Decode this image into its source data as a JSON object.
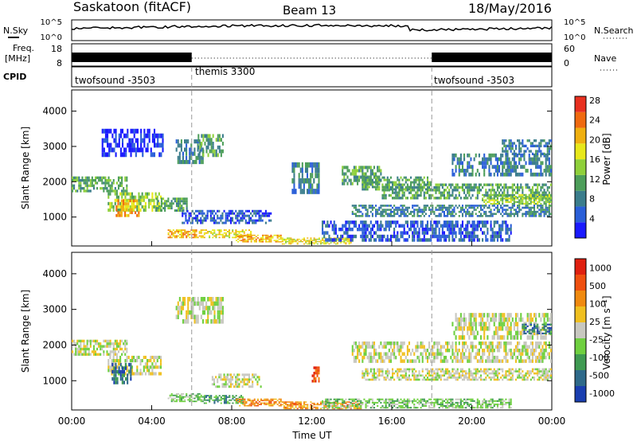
{
  "header": {
    "site_title": "Saskatoon (fitACF)",
    "beam": "Beam 13",
    "date": "18/May/2016"
  },
  "strip": {
    "nsky_label": "N.Sky",
    "nsky_ticks": [
      "10^5",
      "10^0"
    ],
    "nsearch_label": "N.Search",
    "nsearch_ticks": [
      "10^5",
      "10^0"
    ],
    "freq_label": "Freq.",
    "freq_unit": "[MHz]",
    "freq_ticks": [
      "18",
      "8"
    ],
    "nave_label": "Nave",
    "nave_ticks": [
      "60",
      "0"
    ],
    "cpid_label": "CPID",
    "cpid_segments": [
      {
        "name": "twofsound -3503",
        "start_h": 0,
        "end_h": 6
      },
      {
        "name": "themis 3300",
        "start_h": 6,
        "end_h": 18
      },
      {
        "name": "twofsound -3503",
        "start_h": 18,
        "end_h": 24
      }
    ]
  },
  "chart_data": [
    {
      "type": "heatmap",
      "panel": "power",
      "ylabel": "Slant Range [km]",
      "colorbar_label": "Power [dB]",
      "ylim": [
        180,
        4600
      ],
      "xlim_hours": [
        0,
        24
      ],
      "yticks": [
        "1000",
        "2000",
        "3000",
        "4000"
      ],
      "colorbar_ticks": [
        "4",
        "8",
        "12",
        "16",
        "20",
        "24",
        "28"
      ],
      "colorscale": [
        "#1a1aff",
        "#2a5fd8",
        "#3b7d8c",
        "#4d9e5a",
        "#8fd03a",
        "#e8e81a",
        "#f0b010",
        "#f06a10",
        "#e83020"
      ],
      "bands": [
        {
          "h0": 0,
          "h1": 2.8,
          "r0": 1700,
          "r1": 2150,
          "level": 3
        },
        {
          "h0": 1.8,
          "h1": 4.5,
          "r0": 1150,
          "r1": 1700,
          "level": 4
        },
        {
          "h0": 2.2,
          "h1": 3.4,
          "r0": 1000,
          "r1": 1500,
          "level": 6
        },
        {
          "h0": 4.2,
          "h1": 5.8,
          "r0": 1150,
          "r1": 1550,
          "level": 3
        },
        {
          "h0": 5.2,
          "h1": 6.6,
          "r0": 2500,
          "r1": 3200,
          "level": 2
        },
        {
          "h0": 6.3,
          "h1": 7.6,
          "r0": 2700,
          "r1": 3350,
          "level": 3
        },
        {
          "h0": 4.8,
          "h1": 6.6,
          "r0": 400,
          "r1": 650,
          "level": 6
        },
        {
          "h0": 6.6,
          "h1": 9.0,
          "r0": 400,
          "r1": 650,
          "level": 5
        },
        {
          "h0": 8.2,
          "h1": 10.5,
          "r0": 280,
          "r1": 500,
          "level": 6
        },
        {
          "h0": 10.5,
          "h1": 14.0,
          "r0": 220,
          "r1": 420,
          "level": 5
        },
        {
          "h0": 11.0,
          "h1": 12.4,
          "r0": 1650,
          "r1": 2550,
          "level": 2
        },
        {
          "h0": 13.5,
          "h1": 15.5,
          "r0": 1900,
          "r1": 2450,
          "level": 3
        },
        {
          "h0": 14.5,
          "h1": 18.0,
          "r0": 1750,
          "r1": 2150,
          "level": 3
        },
        {
          "h0": 15.5,
          "h1": 24.0,
          "r0": 1500,
          "r1": 1950,
          "level": 3
        },
        {
          "h0": 20.5,
          "h1": 24.0,
          "r0": 1350,
          "r1": 1650,
          "level": 4
        },
        {
          "h0": 14.0,
          "h1": 24.0,
          "r0": 1000,
          "r1": 1350,
          "level": 2
        },
        {
          "h0": 19.0,
          "h1": 24.0,
          "r0": 2150,
          "r1": 2800,
          "level": 2
        },
        {
          "h0": 21.5,
          "h1": 24.0,
          "r0": 2750,
          "r1": 3200,
          "level": 2
        },
        {
          "h0": 12.5,
          "h1": 22.0,
          "r0": 300,
          "r1": 900,
          "level": 1
        },
        {
          "h0": 5.5,
          "h1": 10.0,
          "r0": 800,
          "r1": 1200,
          "level": 1
        },
        {
          "h0": 1.5,
          "h1": 4.6,
          "r0": 2700,
          "r1": 3500,
          "level": 0
        }
      ]
    },
    {
      "type": "heatmap",
      "panel": "velocity",
      "ylabel": "Slant Range [km]",
      "xlabel": "Time UT",
      "colorbar_label": "Velocity [m s⁻¹]",
      "ylim": [
        180,
        4600
      ],
      "xlim_hours": [
        0,
        24
      ],
      "yticks": [
        "1000",
        "2000",
        "3000",
        "4000"
      ],
      "xticks": [
        "00:00",
        "04:00",
        "08:00",
        "12:00",
        "16:00",
        "20:00",
        "00:00"
      ],
      "colorbar_ticks": [
        "1000",
        "500",
        "100",
        "25",
        "-25",
        "-100",
        "-500",
        "-1000"
      ],
      "colorscale": [
        "#1a3fb0",
        "#2f6a8a",
        "#3f9a52",
        "#6fd040",
        "#c8c8c0",
        "#f0c020",
        "#f08a10",
        "#f05010",
        "#e02010"
      ],
      "bands": [
        {
          "h0": 0,
          "h1": 2.8,
          "r0": 1700,
          "r1": 2150,
          "level": 4
        },
        {
          "h0": 1.8,
          "h1": 4.5,
          "r0": 1150,
          "r1": 1700,
          "level": 4
        },
        {
          "h0": 2.0,
          "h1": 3.0,
          "r0": 900,
          "r1": 1500,
          "level": 1
        },
        {
          "h0": 5.2,
          "h1": 7.6,
          "r0": 2600,
          "r1": 3350,
          "level": 4
        },
        {
          "h0": 4.8,
          "h1": 6.6,
          "r0": 400,
          "r1": 650,
          "level": 3
        },
        {
          "h0": 6.6,
          "h1": 8.6,
          "r0": 350,
          "r1": 600,
          "level": 2
        },
        {
          "h0": 8.2,
          "h1": 10.5,
          "r0": 280,
          "r1": 500,
          "level": 6
        },
        {
          "h0": 10.5,
          "h1": 14.5,
          "r0": 200,
          "r1": 420,
          "level": 6
        },
        {
          "h0": 12.0,
          "h1": 12.4,
          "r0": 950,
          "r1": 1400,
          "level": 7
        },
        {
          "h0": 14.0,
          "h1": 24.0,
          "r0": 1500,
          "r1": 2100,
          "level": 4
        },
        {
          "h0": 14.5,
          "h1": 24.0,
          "r0": 1000,
          "r1": 1350,
          "level": 4
        },
        {
          "h0": 19.0,
          "h1": 24.0,
          "r0": 2150,
          "r1": 2900,
          "level": 4
        },
        {
          "h0": 22.5,
          "h1": 24.0,
          "r0": 2300,
          "r1": 2600,
          "level": 1
        },
        {
          "h0": 12.5,
          "h1": 22.0,
          "r0": 220,
          "r1": 500,
          "level": 3
        },
        {
          "h0": 7.0,
          "h1": 9.5,
          "r0": 800,
          "r1": 1200,
          "level": 4
        }
      ]
    }
  ],
  "separators_h": [
    6,
    18
  ]
}
